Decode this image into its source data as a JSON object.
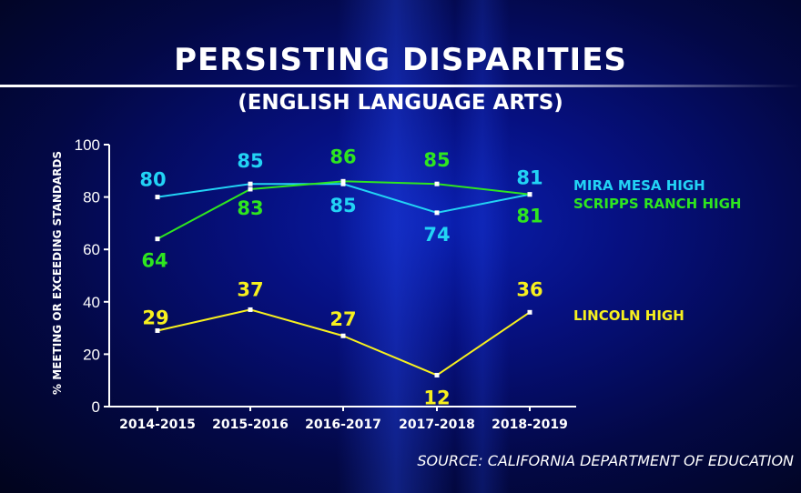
{
  "title": "PERSISTING DISPARITIES",
  "subtitle": "(ENGLISH LANGUAGE ARTS)",
  "source": "SOURCE: CALIFORNIA DEPARTMENT OF EDUCATION",
  "chart_data": {
    "type": "line",
    "title": "PERSISTING DISPARITIES",
    "subtitle": "(ENGLISH LANGUAGE ARTS)",
    "xlabel": "",
    "ylabel": "% MEETING OR EXCEEDING STANDARDS",
    "categories": [
      "2014-2015",
      "2015-2016",
      "2016-2017",
      "2017-2018",
      "2018-2019"
    ],
    "ylim": [
      0,
      100
    ],
    "yticks": [
      "0",
      "20",
      "40",
      "60",
      "80",
      "100"
    ],
    "legend_position": "right",
    "series": [
      {
        "name": "MIRA MESA HIGH",
        "color": "#22d3f5",
        "values": [
          80,
          85,
          85,
          74,
          81
        ]
      },
      {
        "name": "SCRIPPS RANCH HIGH",
        "color": "#2ee61f",
        "values": [
          64,
          83,
          86,
          85,
          81
        ]
      },
      {
        "name": "LINCOLN HIGH",
        "color": "#f7f01e",
        "values": [
          29,
          37,
          27,
          12,
          36
        ]
      }
    ]
  }
}
